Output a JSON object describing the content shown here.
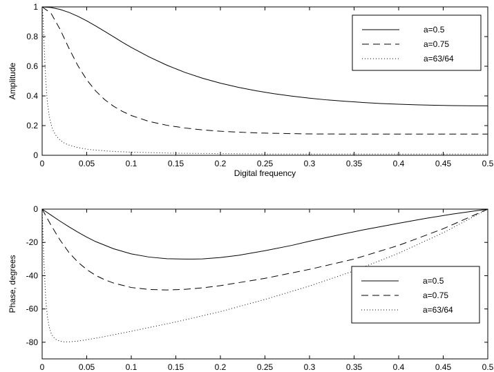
{
  "chart_data": [
    {
      "type": "line",
      "title": "",
      "xlabel": "Digital frequency",
      "ylabel": "Amplitude",
      "xlim": [
        0,
        0.5
      ],
      "ylim": [
        0,
        1
      ],
      "xticks": [
        "0",
        "0.05",
        "0.1",
        "0.15",
        "0.2",
        "0.25",
        "0.3",
        "0.35",
        "0.4",
        "0.45",
        "0.5"
      ],
      "yticks": [
        "0",
        "0.2",
        "0.4",
        "0.6",
        "0.8",
        "1"
      ],
      "grid": false,
      "legend_position": "top-right",
      "series": [
        {
          "name": "a=0.5",
          "style": "solid",
          "x": [
            0,
            0.01,
            0.02,
            0.03,
            0.04,
            0.05,
            0.06,
            0.07,
            0.08,
            0.09,
            0.1,
            0.12,
            0.14,
            0.16,
            0.18,
            0.2,
            0.22,
            0.24,
            0.26,
            0.28,
            0.3,
            0.32,
            0.34,
            0.36,
            0.38,
            0.4,
            0.42,
            0.44,
            0.46,
            0.48,
            0.5
          ],
          "y": [
            1.0,
            0.996,
            0.983,
            0.963,
            0.937,
            0.906,
            0.872,
            0.836,
            0.799,
            0.762,
            0.727,
            0.663,
            0.607,
            0.559,
            0.519,
            0.486,
            0.458,
            0.435,
            0.415,
            0.399,
            0.385,
            0.373,
            0.364,
            0.356,
            0.349,
            0.344,
            0.34,
            0.337,
            0.335,
            0.334,
            0.333
          ]
        },
        {
          "name": "a=0.75",
          "style": "dashed",
          "x": [
            0,
            0.01,
            0.02,
            0.03,
            0.04,
            0.05,
            0.06,
            0.07,
            0.08,
            0.09,
            0.1,
            0.12,
            0.14,
            0.16,
            0.18,
            0.2,
            0.22,
            0.24,
            0.26,
            0.28,
            0.3,
            0.32,
            0.34,
            0.36,
            0.38,
            0.4,
            0.42,
            0.44,
            0.46,
            0.48,
            0.5
          ],
          "y": [
            1.0,
            0.957,
            0.85,
            0.722,
            0.605,
            0.509,
            0.434,
            0.376,
            0.331,
            0.296,
            0.268,
            0.228,
            0.202,
            0.184,
            0.171,
            0.162,
            0.156,
            0.151,
            0.148,
            0.146,
            0.144,
            0.1435,
            0.1432,
            0.1431,
            0.143,
            0.143,
            0.143,
            0.143,
            0.143,
            0.143,
            0.143
          ]
        },
        {
          "name": "a=63/64",
          "style": "dotted",
          "x": [
            0,
            0.001,
            0.002,
            0.003,
            0.004,
            0.005,
            0.006,
            0.008,
            0.01,
            0.012,
            0.015,
            0.02,
            0.025,
            0.03,
            0.04,
            0.05,
            0.06,
            0.08,
            0.1,
            0.12,
            0.15,
            0.2,
            0.25,
            0.3,
            0.35,
            0.4,
            0.45,
            0.5
          ],
          "y": [
            1.0,
            0.928,
            0.779,
            0.63,
            0.51,
            0.42,
            0.351,
            0.262,
            0.208,
            0.172,
            0.137,
            0.103,
            0.082,
            0.069,
            0.052,
            0.041,
            0.035,
            0.026,
            0.021,
            0.018,
            0.014,
            0.011,
            0.009,
            0.008,
            0.0085,
            0.008,
            0.008,
            0.008
          ]
        }
      ]
    },
    {
      "type": "line",
      "title": "",
      "xlabel": "",
      "ylabel": "Phase, degrees",
      "xlim": [
        0,
        0.5
      ],
      "ylim": [
        -90,
        0
      ],
      "xticks": [
        "0",
        "0.05",
        "0.1",
        "0.15",
        "0.2",
        "0.25",
        "0.3",
        "0.35",
        "0.4",
        "0.45",
        "0.5"
      ],
      "yticks": [
        "-80",
        "-60",
        "-40",
        "-20",
        "0"
      ],
      "grid": false,
      "legend_position": "bottom-right",
      "series": [
        {
          "name": "a=0.5",
          "style": "solid",
          "x": [
            0,
            0.01,
            0.02,
            0.03,
            0.04,
            0.05,
            0.06,
            0.08,
            0.1,
            0.12,
            0.14,
            0.16,
            0.17,
            0.18,
            0.2,
            0.22,
            0.25,
            0.28,
            0.3,
            0.33,
            0.36,
            0.4,
            0.43,
            0.46,
            0.5
          ],
          "y": [
            0,
            -3.6,
            -7.2,
            -10.6,
            -13.8,
            -16.8,
            -19.5,
            -23.8,
            -26.9,
            -28.8,
            -29.8,
            -30.0,
            -30.0,
            -29.9,
            -29.1,
            -27.8,
            -25.0,
            -21.8,
            -19.3,
            -15.8,
            -12.5,
            -8.5,
            -5.6,
            -3.0,
            0
          ]
        },
        {
          "name": "a=0.75",
          "style": "dashed",
          "x": [
            0,
            0.01,
            0.02,
            0.03,
            0.04,
            0.05,
            0.06,
            0.07,
            0.08,
            0.1,
            0.12,
            0.14,
            0.16,
            0.18,
            0.2,
            0.25,
            0.3,
            0.35,
            0.4,
            0.45,
            0.5
          ],
          "y": [
            0,
            -9.7,
            -18.5,
            -26.0,
            -31.8,
            -36.3,
            -39.8,
            -42.4,
            -44.4,
            -47.1,
            -48.3,
            -48.6,
            -48.2,
            -47.3,
            -46.0,
            -41.6,
            -36.2,
            -30.0,
            -21.8,
            -11.8,
            0
          ]
        },
        {
          "name": "a=63/64",
          "style": "dotted",
          "x": [
            0,
            0.002,
            0.004,
            0.006,
            0.008,
            0.01,
            0.012,
            0.015,
            0.02,
            0.025,
            0.03,
            0.04,
            0.05,
            0.07,
            0.1,
            0.15,
            0.2,
            0.25,
            0.3,
            0.35,
            0.4,
            0.45,
            0.5
          ],
          "y": [
            0,
            -32,
            -54,
            -65,
            -71,
            -74.5,
            -76.5,
            -78.2,
            -79.4,
            -79.8,
            -79.8,
            -79.3,
            -78.5,
            -76.6,
            -73.4,
            -67.8,
            -61.6,
            -54.3,
            -46.2,
            -37.1,
            -26.5,
            -14.2,
            0
          ]
        }
      ]
    }
  ]
}
